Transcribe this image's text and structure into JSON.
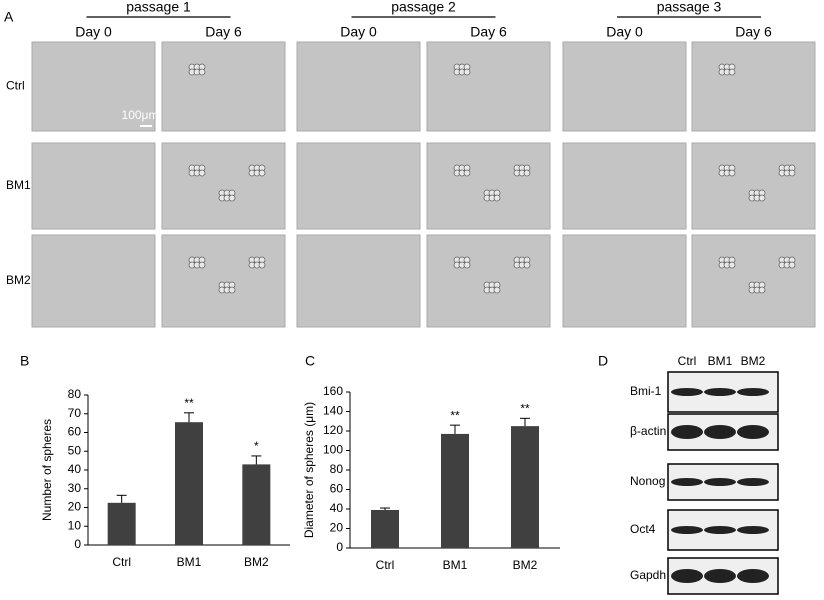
{
  "figure": {
    "panel_a": {
      "label": "A",
      "passages": [
        {
          "label": "passage 1",
          "days": [
            "Day 0",
            "Day 6"
          ]
        },
        {
          "label": "passage 2",
          "days": [
            "Day 0",
            "Day 6"
          ]
        },
        {
          "label": "passage 3",
          "days": [
            "Day 0",
            "Day 6"
          ]
        }
      ],
      "rows": [
        "Ctrl",
        "BM1",
        "BM2"
      ],
      "scale_bar": "100μm"
    },
    "panel_d": {
      "label": "D",
      "lanes": [
        "Ctrl",
        "BM1",
        "BM2"
      ],
      "proteins": [
        "Bmi-1",
        "β-actin",
        "Nonog",
        "Oct4",
        "Gapdh"
      ]
    }
  },
  "chart_data": [
    {
      "type": "bar",
      "panel": "B",
      "y_label": "Number of spheres",
      "categories": [
        "Ctrl",
        "BM1",
        "BM2"
      ],
      "values": [
        22.5,
        65.5,
        43
      ],
      "errors": [
        4,
        5,
        4.5
      ],
      "annotations": [
        null,
        "**",
        "*"
      ],
      "color": "#404040",
      "ylim": [
        0,
        80
      ],
      "yticks": [
        0,
        10,
        20,
        30,
        40,
        50,
        60,
        70,
        80
      ]
    },
    {
      "type": "bar",
      "panel": "C",
      "y_label": "Diameter of spheres (μm)",
      "categories": [
        "Ctrl",
        "BM1",
        "BM2"
      ],
      "values": [
        39,
        117,
        125
      ],
      "errors": [
        2,
        9,
        8
      ],
      "annotations": [
        null,
        "**",
        "**"
      ],
      "color": "#404040",
      "ylim": [
        0,
        160
      ],
      "yticks": [
        0,
        20,
        40,
        60,
        80,
        100,
        120,
        140,
        160
      ]
    }
  ]
}
